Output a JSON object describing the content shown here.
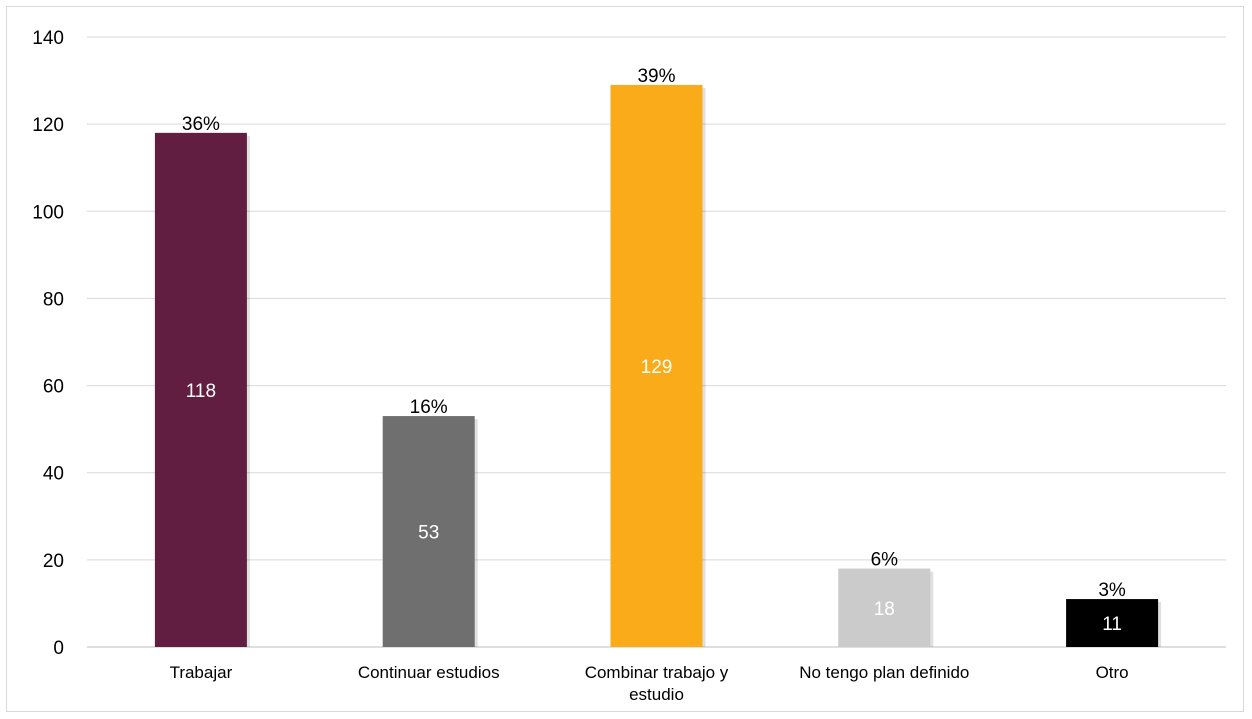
{
  "chart_data": {
    "type": "bar",
    "title": "",
    "xlabel": "",
    "ylabel": "",
    "ylim": [
      0,
      140
    ],
    "yticks": [
      0,
      20,
      40,
      60,
      80,
      100,
      120,
      140
    ],
    "grid": true,
    "legend": "none",
    "categories": [
      [
        "Trabajar"
      ],
      [
        "Continuar estudios"
      ],
      [
        "Combinar trabajo y",
        "estudio"
      ],
      [
        "No tengo plan definido"
      ],
      [
        "Otro"
      ]
    ],
    "values": [
      118,
      53,
      129,
      18,
      11
    ],
    "percent_labels": [
      "36%",
      "16%",
      "39%",
      "6%",
      "3%"
    ],
    "value_labels": [
      "118",
      "53",
      "129",
      "18",
      "11"
    ],
    "colors": [
      "#621e41",
      "#6f6f6f",
      "#f9ab19",
      "#cbcbcb",
      "#000000"
    ]
  }
}
